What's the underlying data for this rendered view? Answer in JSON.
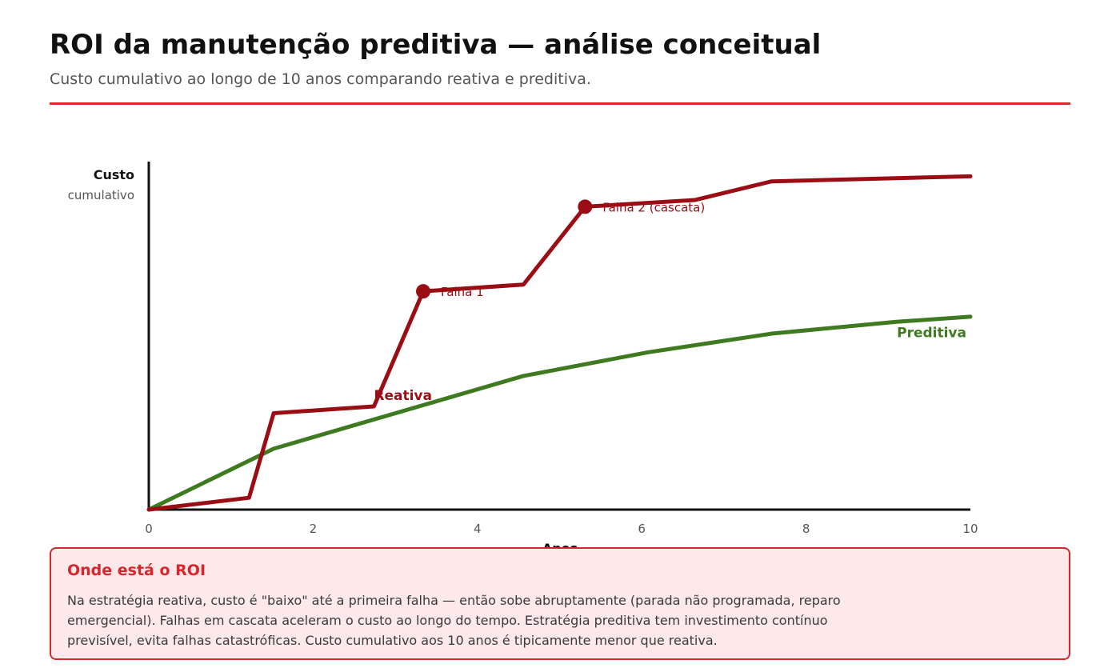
{
  "header": {
    "title": "ROI da manutenção preditiva — análise conceitual",
    "subtitle": "Custo cumulativo ao longo de 10 anos comparando reativa e preditiva."
  },
  "colors": {
    "accent": "#dd2a2f",
    "reativa": "#9b0d15",
    "preditiva": "#3d7a20",
    "callout_bg": "#fde8ea"
  },
  "chart_data": {
    "type": "line",
    "ylabel": "Custo",
    "ylabel_sub": "cumulativo",
    "xlabel": "Anos",
    "xlim": [
      0,
      10
    ],
    "ylim": [
      0,
      100
    ],
    "x_ticks": [
      0,
      2,
      4,
      6,
      8,
      10
    ],
    "y_axis_values_shown": false,
    "grid": false,
    "series": [
      {
        "name": "Reativa",
        "color": "#9b0d15",
        "x": [
          0,
          1.22,
          1.52,
          2.74,
          3.34,
          4.56,
          5.31,
          6.65,
          7.58,
          10
        ],
        "y": [
          0,
          3.5,
          28.5,
          30.5,
          64.5,
          66.5,
          89.5,
          91.5,
          97,
          98.5
        ]
      },
      {
        "name": "Preditiva",
        "color": "#3d7a20",
        "x": [
          0,
          1.52,
          4.56,
          6.08,
          7.58,
          9.1,
          10
        ],
        "y": [
          0,
          18,
          39.5,
          46.5,
          52,
          55.5,
          57
        ]
      }
    ],
    "annotations": [
      {
        "text": "Falha 1",
        "x": 3.34,
        "y": 64.5,
        "series": "Reativa"
      },
      {
        "text": "Falha 2 (cascata)",
        "x": 5.31,
        "y": 89.5,
        "series": "Reativa"
      }
    ]
  },
  "callout": {
    "title": "Onde está o ROI",
    "body": "Na estratégia reativa, custo é \"baixo\" até a primeira falha — então sobe abruptamente (parada não programada, reparo emergencial). Falhas em cascata aceleram o custo ao longo do tempo. Estratégia preditiva tem investimento contínuo previsível, evita falhas catastróficas. Custo cumulativo aos 10 anos é tipicamente menor que reativa."
  }
}
